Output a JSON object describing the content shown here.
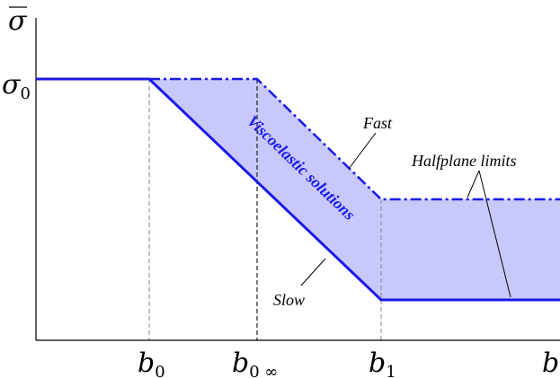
{
  "axes": {
    "y_symbol": "σ",
    "x_symbol": "b"
  },
  "ticks": {
    "sigma0": {
      "base": "σ",
      "sub": "0"
    },
    "b0": {
      "base": "b",
      "sub": "0"
    },
    "b0inf": {
      "base": "b",
      "sub": "0 ∞"
    },
    "b1": {
      "base": "b",
      "sub": "1"
    }
  },
  "labels": {
    "fast": "Fast",
    "slow": "Slow",
    "halfplane": "Halfplane limits",
    "region": "Viscoelastic solutions"
  },
  "colors": {
    "curve": "#1a1ae6",
    "band": "#c8c8fa",
    "guide": "#888888",
    "axis": "#000000"
  },
  "chart_data": {
    "type": "area",
    "title": "",
    "xlabel": "b",
    "ylabel": "σ",
    "x_ticks": [
      "b0",
      "b0∞",
      "b1",
      "b"
    ],
    "y_ticks": [
      "σ0"
    ],
    "series": [
      {
        "name": "Fast",
        "style": "dash-dot",
        "x": [
          "0",
          "b0∞",
          "b1",
          "end"
        ],
        "y": [
          "σ0",
          "σ0",
          "high limit",
          "high limit"
        ]
      },
      {
        "name": "Slow",
        "style": "solid",
        "x": [
          "0",
          "b0",
          "b1",
          "end"
        ],
        "y": [
          "σ0",
          "σ0",
          "low limit",
          "low limit"
        ]
      }
    ],
    "shaded_region": "Viscoelastic solutions",
    "grid": false,
    "legend": "none"
  }
}
